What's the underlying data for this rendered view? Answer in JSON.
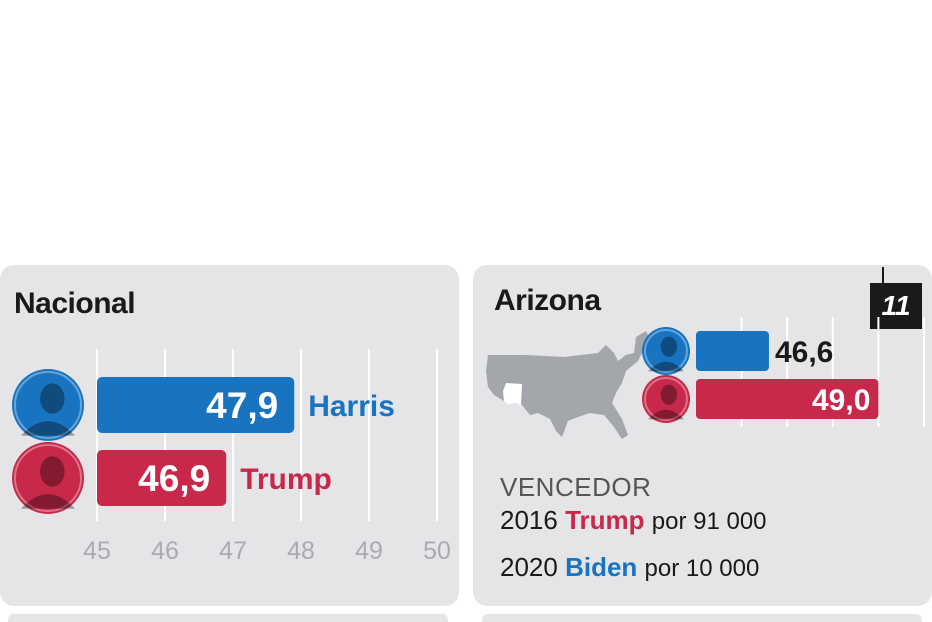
{
  "colors": {
    "harris": "#1873c1",
    "trump": "#c8284a",
    "card_bg": "#e5e5e8",
    "grid": "#ffffff",
    "map": "#a3a6ab"
  },
  "national": {
    "title": "Nacional",
    "candidates": [
      {
        "name": "Harris",
        "value_label": "47,9",
        "portrait": "harris-portrait-icon"
      },
      {
        "name": "Trump",
        "value_label": "46,9",
        "portrait": "trump-portrait-icon"
      }
    ]
  },
  "arizona": {
    "title": "Arizona",
    "electoral_votes": "11",
    "map_icon": "us-map-arizona-highlight-icon",
    "candidates": [
      {
        "name": "Harris",
        "value_label": "46,6",
        "portrait": "harris-portrait-icon"
      },
      {
        "name": "Trump",
        "value_label": "49,0",
        "portrait": "trump-portrait-icon"
      }
    ],
    "winner_heading": "VENCEDOR",
    "winners": [
      {
        "year": "2016",
        "candidate": "Trump",
        "party": "trump",
        "margin": "por  91 000"
      },
      {
        "year": "2020",
        "candidate": "Biden",
        "party": "harris",
        "margin": "por 10 000"
      }
    ]
  },
  "chart_data": [
    {
      "type": "bar",
      "title": "Nacional",
      "categories": [
        "Harris",
        "Trump"
      ],
      "values": [
        47.9,
        46.9
      ],
      "xlim": [
        45,
        50
      ],
      "xticks": [
        "45",
        "46",
        "47",
        "48",
        "49",
        "50"
      ],
      "grid": true,
      "unit": "%"
    },
    {
      "type": "bar",
      "title": "Arizona",
      "categories": [
        "Harris",
        "Trump"
      ],
      "values": [
        46.6,
        49.0
      ],
      "xlim": [
        45,
        50
      ],
      "grid": true,
      "unit": "%"
    }
  ]
}
